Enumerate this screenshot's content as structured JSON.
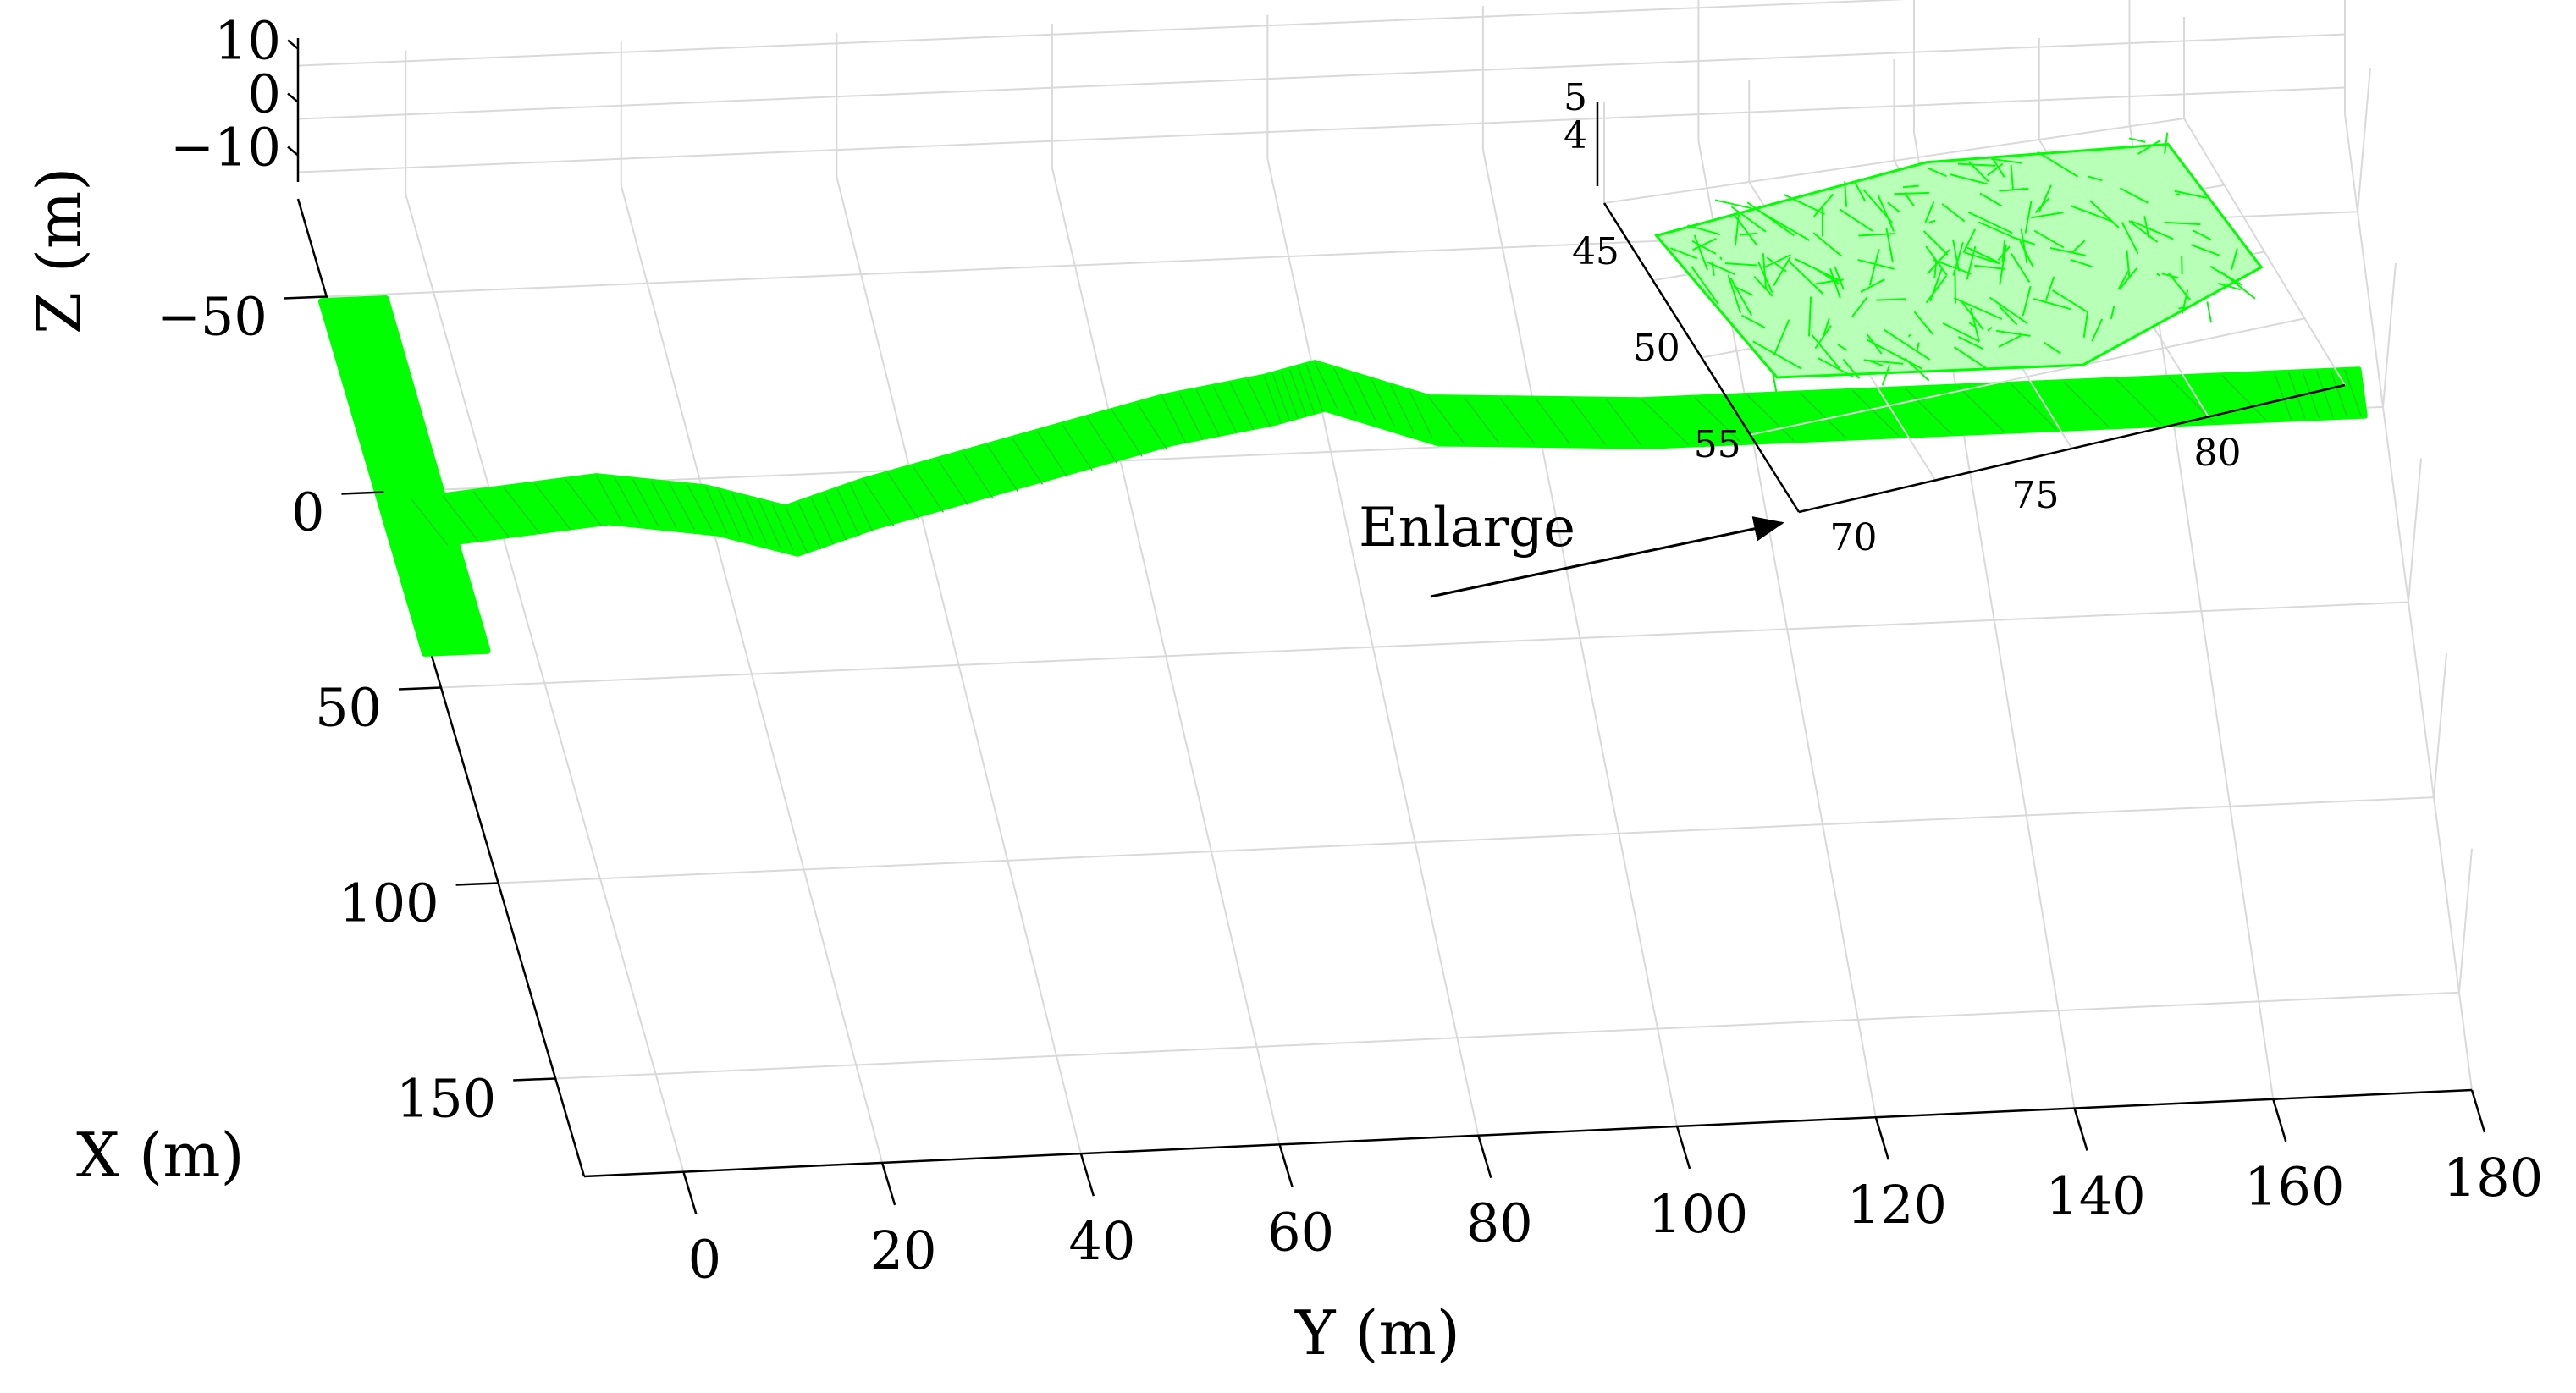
{
  "chart_data": [
    {
      "type": "3d-wireframe-mesh",
      "title": "",
      "xlabel": "X (m)",
      "ylabel": "Y (m)",
      "zlabel": "Z (m)",
      "x_ticks": [
        -50,
        0,
        50,
        100,
        150
      ],
      "y_ticks": [
        0,
        20,
        40,
        60,
        80,
        100,
        120,
        140,
        160,
        180
      ],
      "z_ticks": [
        10,
        0,
        -10
      ],
      "x_tick_labels": [
        "−50",
        "0",
        "50",
        "100",
        "150"
      ],
      "y_tick_labels": [
        "0",
        "20",
        "40",
        "60",
        "80",
        "100",
        "120",
        "140",
        "160",
        "180"
      ],
      "z_tick_labels": [
        "10",
        "0",
        "−10"
      ],
      "xlim": [
        -75,
        175
      ],
      "ylim": [
        -10,
        180
      ],
      "zlim": [
        -15,
        12
      ],
      "grid": true,
      "mesh_color": "#00ff00",
      "tunnel_centerline": [
        {
          "y": -8,
          "x": 12
        },
        {
          "y": 10,
          "x": 8
        },
        {
          "y": 20,
          "x": 12
        },
        {
          "y": 27,
          "x": 18
        },
        {
          "y": 35,
          "x": 12
        },
        {
          "y": 50,
          "x": 3
        },
        {
          "y": 65,
          "x": -6
        },
        {
          "y": 75,
          "x": -10
        },
        {
          "y": 80,
          "x": -13
        },
        {
          "y": 90,
          "x": -3
        },
        {
          "y": 110,
          "x": 0
        },
        {
          "y": 140,
          "x": 0
        },
        {
          "y": 170,
          "x": 0
        },
        {
          "y": 178,
          "x": 0
        }
      ],
      "side_branch": {
        "y": -8,
        "x_from": -45,
        "x_to": 45
      }
    },
    {
      "type": "3d-wireframe-mesh-inset",
      "annotation": "Enlarge",
      "x_ticks": [
        45,
        50,
        55
      ],
      "y_ticks": [
        70,
        75,
        80
      ],
      "z_ticks": [
        5,
        4
      ],
      "x_tick_labels": [
        "45",
        "50",
        "55"
      ],
      "y_tick_labels": [
        "70",
        "75",
        "80"
      ],
      "z_tick_labels": [
        "5",
        "4"
      ],
      "mesh_color": "#00ff00"
    }
  ]
}
